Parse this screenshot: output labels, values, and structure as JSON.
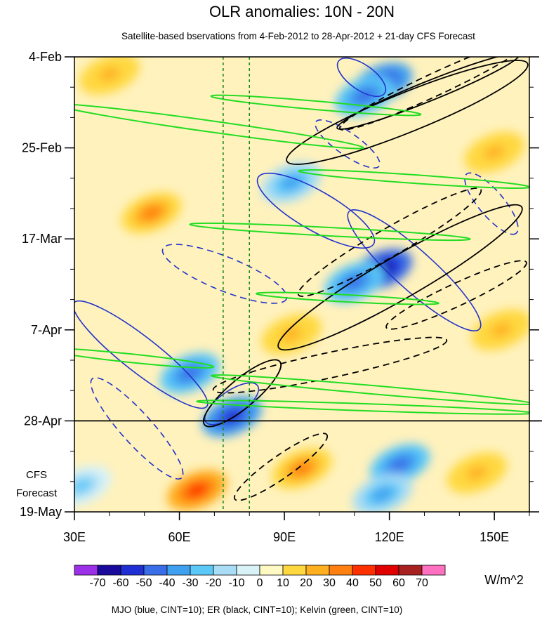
{
  "chart_data": {
    "type": "heatmap",
    "title": "OLR anomalies: 10N - 20N",
    "subtitle": "Satellite-based bservations from 4-Feb-2012 to 28-Apr-2012 + 21-day CFS Forecast",
    "x_ticks": [
      {
        "value": 30,
        "label": "30E"
      },
      {
        "value": 60,
        "label": "60E"
      },
      {
        "value": 90,
        "label": "90E"
      },
      {
        "value": 120,
        "label": "120E"
      },
      {
        "value": 150,
        "label": "150E"
      }
    ],
    "xlim": [
      30,
      160
    ],
    "y_ticks": [
      {
        "day": 0,
        "label": "4-Feb"
      },
      {
        "day": 21,
        "label": "25-Feb"
      },
      {
        "day": 42,
        "label": "17-Mar"
      },
      {
        "day": 63,
        "label": "7-Apr"
      },
      {
        "day": 84,
        "label": "28-Apr"
      },
      {
        "day": 105,
        "label": "19-May"
      }
    ],
    "ylim_days": [
      0,
      105
    ],
    "forecast_start_day": 84,
    "forecast_label_lines": [
      "CFS",
      "Forecast"
    ],
    "reference_lines_lon": [
      72.5,
      80
    ],
    "colorbar": {
      "unit": "W/m^2",
      "levels": [
        -70,
        -60,
        -50,
        -40,
        -30,
        -20,
        -10,
        0,
        10,
        20,
        30,
        40,
        50,
        60,
        70
      ],
      "labels": [
        "-70",
        "-60",
        "-50",
        "-40",
        "-30",
        "-20",
        "-10",
        "0",
        "10",
        "20",
        "30",
        "40",
        "50",
        "60",
        "70"
      ],
      "colors": [
        "#9b30e8",
        "#1a0a9c",
        "#1f2fd4",
        "#3a6ee8",
        "#3fa0f0",
        "#5cc8f8",
        "#a8ddf5",
        "#d8f2f8",
        "#fff9c4",
        "#ffd840",
        "#ffb020",
        "#ff8010",
        "#ff3000",
        "#e00000",
        "#a82020",
        "#ff70c0"
      ]
    },
    "footer": "MJO (blue, CINT=10); ER (black, CINT=10); Kelvin (green, CINT=10)",
    "series": [
      {
        "name": "MJO",
        "color": "#2233cc"
      },
      {
        "name": "ER",
        "color": "#000000"
      },
      {
        "name": "Kelvin",
        "color": "#22dd22"
      }
    ],
    "negative_anomaly_regions": [
      {
        "lon": 118,
        "day": 6,
        "value": -60
      },
      {
        "lon": 113,
        "day": 9,
        "value": -50
      },
      {
        "lon": 92,
        "day": 29,
        "value": -40
      },
      {
        "lon": 118,
        "day": 49,
        "value": -70
      },
      {
        "lon": 110,
        "day": 52,
        "value": -50
      },
      {
        "lon": 63,
        "day": 73,
        "value": -50
      },
      {
        "lon": 75,
        "day": 83,
        "value": -60
      },
      {
        "lon": 123,
        "day": 94,
        "value": -50
      },
      {
        "lon": 118,
        "day": 101,
        "value": -40
      },
      {
        "lon": 32,
        "day": 99,
        "value": -30
      }
    ],
    "positive_anomaly_regions": [
      {
        "lon": 40,
        "day": 4,
        "value": 20
      },
      {
        "lon": 52,
        "day": 36,
        "value": 30
      },
      {
        "lon": 65,
        "day": 100,
        "value": 40
      },
      {
        "lon": 95,
        "day": 95,
        "value": 30
      },
      {
        "lon": 150,
        "day": 22,
        "value": 20
      },
      {
        "lon": 152,
        "day": 63,
        "value": 20
      },
      {
        "lon": 92,
        "day": 64,
        "value": 20
      },
      {
        "lon": 145,
        "day": 96,
        "value": 20
      }
    ]
  }
}
